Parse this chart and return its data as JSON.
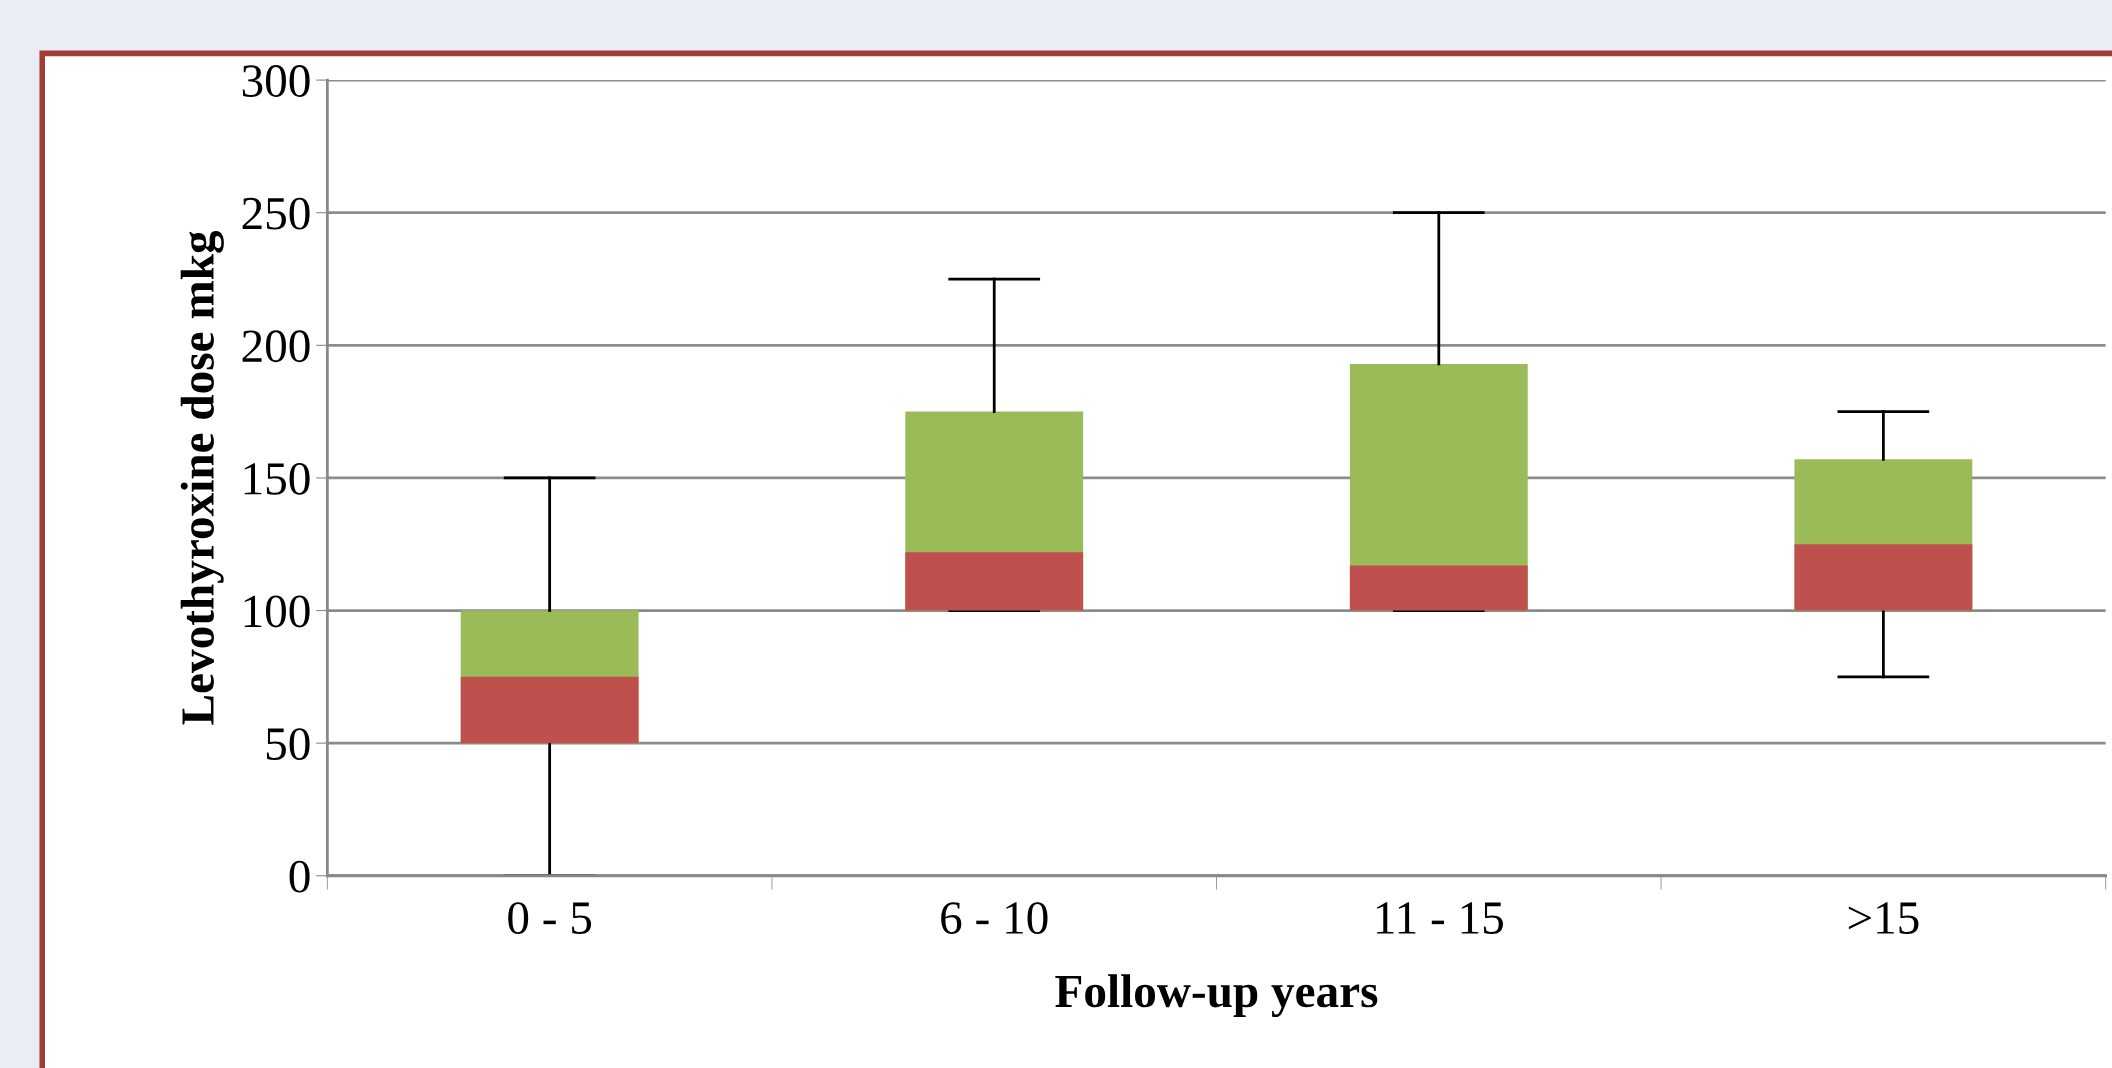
{
  "chart_data": {
    "type": "box",
    "xlabel": "Follow-up years",
    "ylabel": "Levothyroxine dose mkg",
    "categories": [
      "0 - 5",
      "6 - 10",
      "11 - 15",
      ">15"
    ],
    "series": [
      {
        "color": "#9bbb59",
        "colors": [
          "#c0504d",
          "#c0504d",
          "#c0504d",
          "#c0504d"
        ],
        "boxes": [
          {
            "low": 0,
            "q1": 50,
            "median": 75,
            "q3": 100,
            "high": 150
          },
          {
            "low": 100,
            "q1": 100,
            "median": 122,
            "q3": 175,
            "high": 225
          },
          {
            "low": 100,
            "q1": 100,
            "median": 117,
            "q3": 193,
            "high": 250
          },
          {
            "low": 75,
            "q1": 100,
            "median": 125,
            "q3": 157,
            "high": 175
          }
        ]
      }
    ],
    "ylim": [
      0,
      300
    ],
    "yticks": [
      0,
      50,
      100,
      150,
      200,
      250,
      300
    ],
    "grid": "y"
  }
}
